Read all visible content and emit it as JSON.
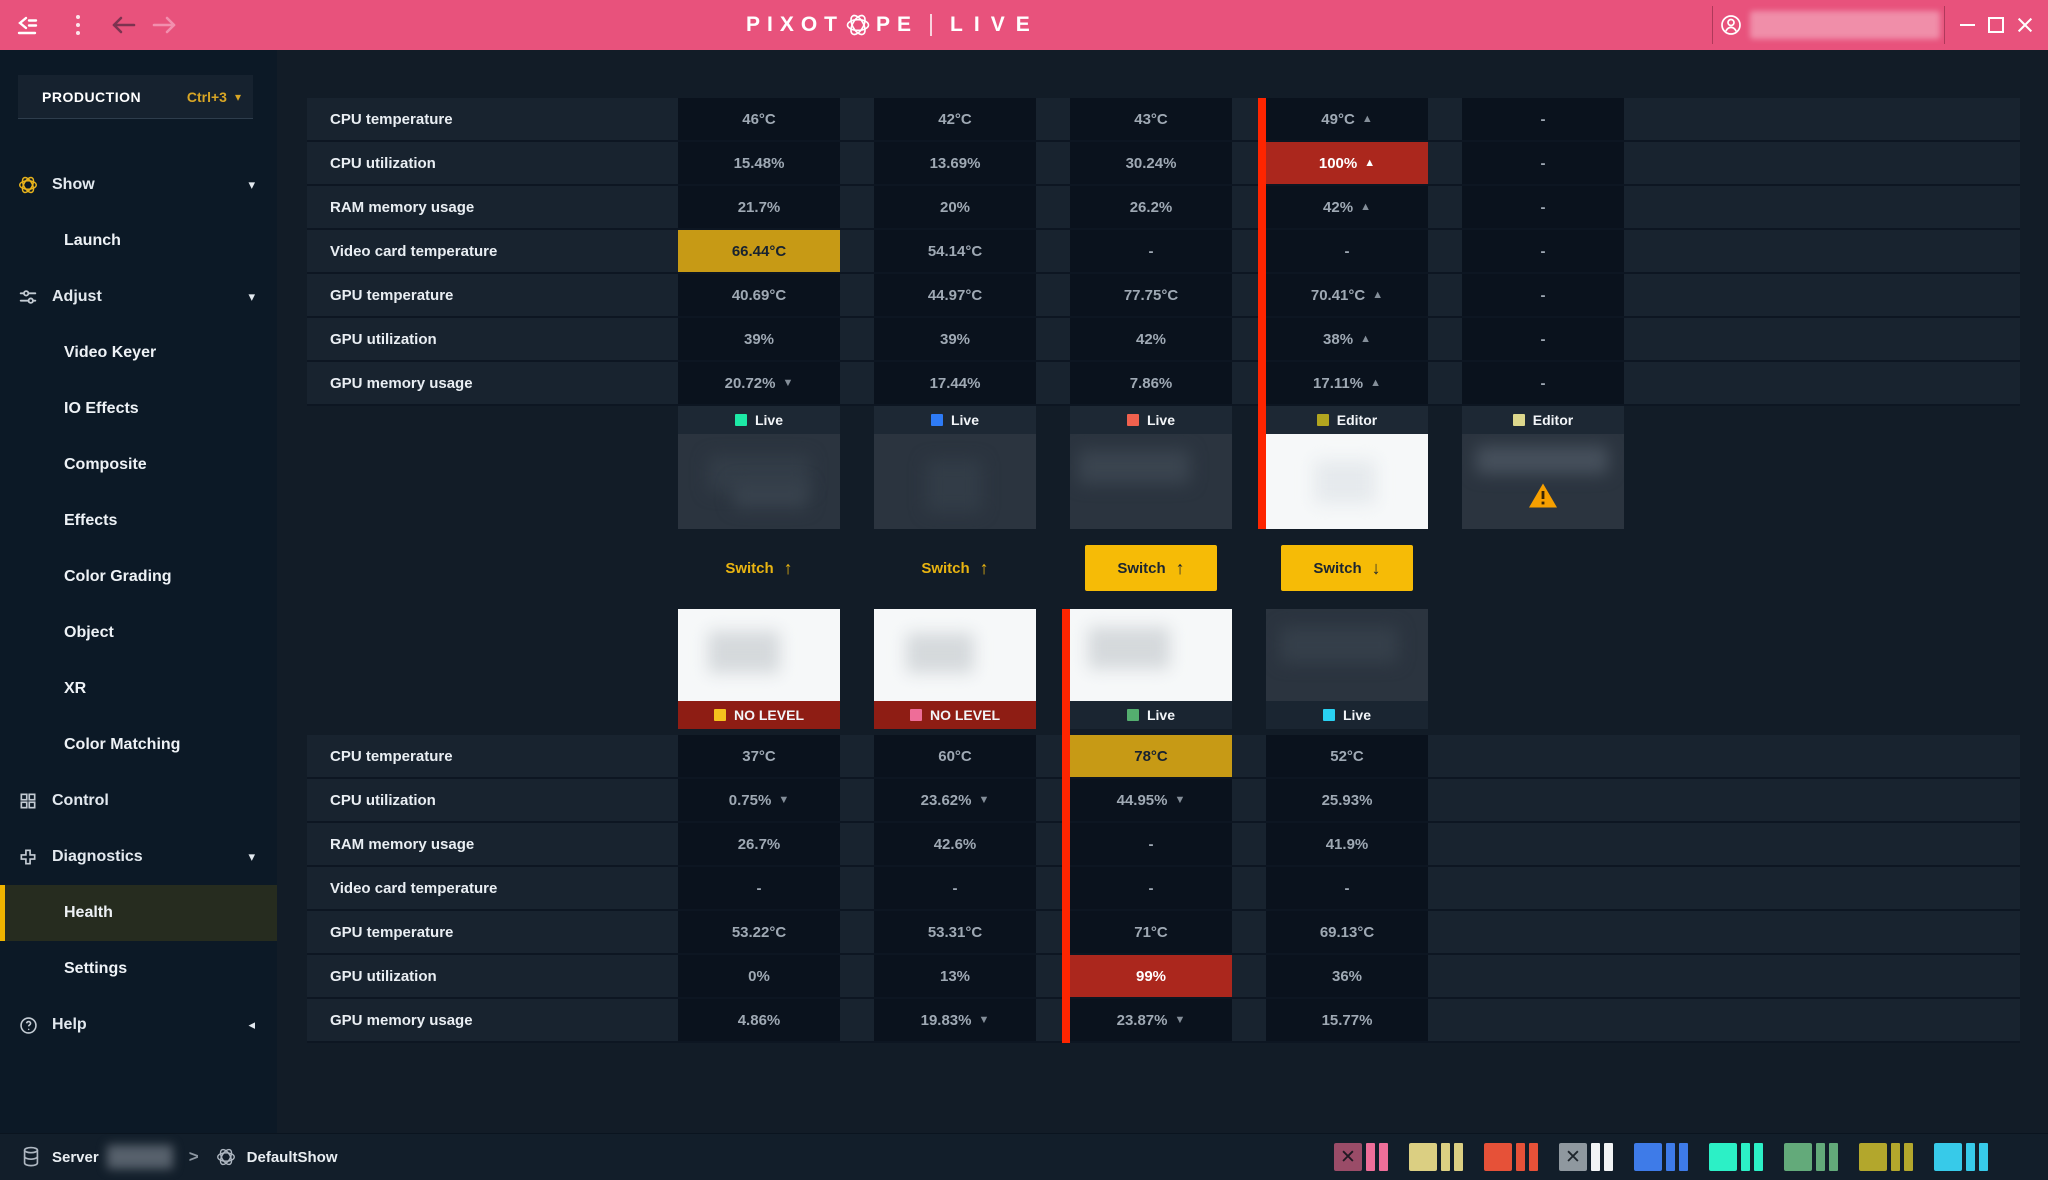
{
  "topbar": {
    "logo": {
      "word_start": "PIXOT",
      "word_end": "PE",
      "product": "LIVE"
    }
  },
  "sidebar": {
    "context_switcher": {
      "label": "PRODUCTION",
      "shortcut": "Ctrl+3"
    },
    "sections": [
      {
        "label": "Show",
        "icon": "pixotope-icon",
        "icon_color": "#e9b41c",
        "caret": "down",
        "children": [
          {
            "label": "Launch"
          }
        ]
      },
      {
        "label": "Adjust",
        "icon": "sliders-icon",
        "caret": "down",
        "children": [
          {
            "label": "Video Keyer"
          },
          {
            "label": "IO Effects"
          },
          {
            "label": "Composite"
          },
          {
            "label": "Effects"
          },
          {
            "label": "Color Grading"
          },
          {
            "label": "Object"
          },
          {
            "label": "XR"
          },
          {
            "label": "Color Matching"
          }
        ]
      },
      {
        "label": "Control",
        "icon": "grid-icon",
        "caret": null,
        "children": []
      },
      {
        "label": "Diagnostics",
        "icon": "health-cross-icon",
        "caret": "down",
        "children": [
          {
            "label": "Health",
            "active": true
          },
          {
            "label": "Settings"
          }
        ]
      },
      {
        "label": "Help",
        "icon": "question-icon",
        "caret": "left",
        "children": []
      }
    ]
  },
  "health": {
    "switch_label": "Switch",
    "metrics": [
      "CPU temperature",
      "CPU utilization",
      "RAM memory usage",
      "Video card temperature",
      "GPU temperature",
      "GPU utilization",
      "GPU memory usage"
    ],
    "top_machines": [
      {
        "badge": {
          "label": "Live",
          "color": "#1de9a6"
        },
        "thumb": "dark",
        "switch": {
          "style": "ghost",
          "direction": "up"
        },
        "values": [
          {
            "text": "46°C"
          },
          {
            "text": "15.48%"
          },
          {
            "text": "21.7%"
          },
          {
            "text": "66.44°C",
            "highlight": "warning"
          },
          {
            "text": "40.69°C"
          },
          {
            "text": "39%"
          },
          {
            "text": "20.72%",
            "trend": "down"
          }
        ]
      },
      {
        "badge": {
          "label": "Live",
          "color": "#2e7bf6"
        },
        "thumb": "dark",
        "switch": {
          "style": "ghost",
          "direction": "up"
        },
        "values": [
          {
            "text": "42°C"
          },
          {
            "text": "13.69%"
          },
          {
            "text": "20%"
          },
          {
            "text": "54.14°C"
          },
          {
            "text": "44.97°C"
          },
          {
            "text": "39%"
          },
          {
            "text": "17.44%"
          }
        ]
      },
      {
        "badge": {
          "label": "Live",
          "color": "#f0614e"
        },
        "thumb": "dark",
        "switch": {
          "style": "filled",
          "direction": "up"
        },
        "values": [
          {
            "text": "43°C"
          },
          {
            "text": "30.24%"
          },
          {
            "text": "26.2%"
          },
          {
            "text": "-"
          },
          {
            "text": "77.75°C"
          },
          {
            "text": "42%"
          },
          {
            "text": "7.86%"
          }
        ]
      },
      {
        "badge": {
          "label": "Editor",
          "color": "#b1a51f"
        },
        "thumb": "white",
        "live_border": true,
        "switch": {
          "style": "filled",
          "direction": "down"
        },
        "values": [
          {
            "text": "49°C",
            "trend": "up"
          },
          {
            "text": "100%",
            "trend": "up",
            "highlight": "critical"
          },
          {
            "text": "42%",
            "trend": "up"
          },
          {
            "text": "-"
          },
          {
            "text": "70.41°C",
            "trend": "up"
          },
          {
            "text": "38%",
            "trend": "up"
          },
          {
            "text": "17.11%",
            "trend": "up"
          }
        ]
      },
      {
        "badge": {
          "label": "Editor",
          "color": "#dcd78c"
        },
        "thumb": "warning",
        "switch": null,
        "values": [
          {
            "text": "-"
          },
          {
            "text": "-"
          },
          {
            "text": "-"
          },
          {
            "text": "-"
          },
          {
            "text": "-"
          },
          {
            "text": "-"
          },
          {
            "text": "-"
          }
        ]
      }
    ],
    "bottom_machines": [
      {
        "badge": {
          "label": "NO LEVEL",
          "color": "#f5c31d",
          "bg": "#8e1d14"
        },
        "thumb": "white",
        "values": [
          {
            "text": "37°C"
          },
          {
            "text": "0.75%",
            "trend": "down"
          },
          {
            "text": "26.7%"
          },
          {
            "text": "-"
          },
          {
            "text": "53.22°C"
          },
          {
            "text": "0%"
          },
          {
            "text": "4.86%"
          }
        ]
      },
      {
        "badge": {
          "label": "NO LEVEL",
          "color": "#ee6d98",
          "bg": "#8e1d14"
        },
        "thumb": "white",
        "values": [
          {
            "text": "60°C"
          },
          {
            "text": "23.62%",
            "trend": "down"
          },
          {
            "text": "42.6%"
          },
          {
            "text": "-"
          },
          {
            "text": "53.31°C"
          },
          {
            "text": "13%"
          },
          {
            "text": "19.83%",
            "trend": "down"
          }
        ]
      },
      {
        "badge": {
          "label": "Live",
          "color": "#54ae6f",
          "bg": "#1a2531"
        },
        "thumb": "white",
        "live_border": true,
        "values": [
          {
            "text": "78°C",
            "highlight": "warning"
          },
          {
            "text": "44.95%",
            "trend": "down"
          },
          {
            "text": "-"
          },
          {
            "text": "-"
          },
          {
            "text": "71°C"
          },
          {
            "text": "99%",
            "highlight": "critical"
          },
          {
            "text": "23.87%",
            "trend": "down"
          }
        ]
      },
      {
        "badge": {
          "label": "Live",
          "color": "#29d1f2",
          "bg": "#1a2531"
        },
        "thumb": "dark",
        "values": [
          {
            "text": "52°C"
          },
          {
            "text": "25.93%"
          },
          {
            "text": "41.9%"
          },
          {
            "text": "-"
          },
          {
            "text": "69.13°C"
          },
          {
            "text": "36%"
          },
          {
            "text": "15.77%"
          }
        ]
      }
    ]
  },
  "statusbar": {
    "server_label": "Server",
    "show_name": "DefaultShow",
    "indicator_groups": [
      {
        "square": "#9a4c68",
        "x_mark": true,
        "bars": [
          "#ee6e99",
          "#ee6e99"
        ]
      },
      {
        "square": "#dbcf82",
        "x_mark": false,
        "bars": [
          "#dbcf82",
          "#dbcf82"
        ]
      },
      {
        "square": "#e65138",
        "x_mark": false,
        "bars": [
          "#e65138",
          "#e65138"
        ]
      },
      {
        "square": "#8f989f",
        "x_mark": true,
        "bars": [
          "#f2f4f5",
          "#f2f4f5"
        ]
      },
      {
        "square": "#3e7be8",
        "x_mark": false,
        "bars": [
          "#3e7be8",
          "#3e7be8"
        ]
      },
      {
        "square": "#2cf0c6",
        "x_mark": false,
        "bars": [
          "#2cf0c6",
          "#2cf0c6"
        ]
      },
      {
        "square": "#63aa7a",
        "x_mark": false,
        "bars": [
          "#63aa7a",
          "#63aa7a"
        ]
      },
      {
        "square": "#b3a72c",
        "x_mark": false,
        "bars": [
          "#b3a72c",
          "#b3a72c"
        ]
      },
      {
        "square": "#37cae9",
        "x_mark": false,
        "bars": [
          "#37cae9",
          "#37cae9"
        ]
      }
    ]
  },
  "colors": {
    "accent_pink": "#e8527c",
    "warning_yellow": "#c79a15",
    "critical_red": "#ab271d",
    "live_border_red": "#fe2500",
    "switch_yellow": "#f6bb06"
  }
}
